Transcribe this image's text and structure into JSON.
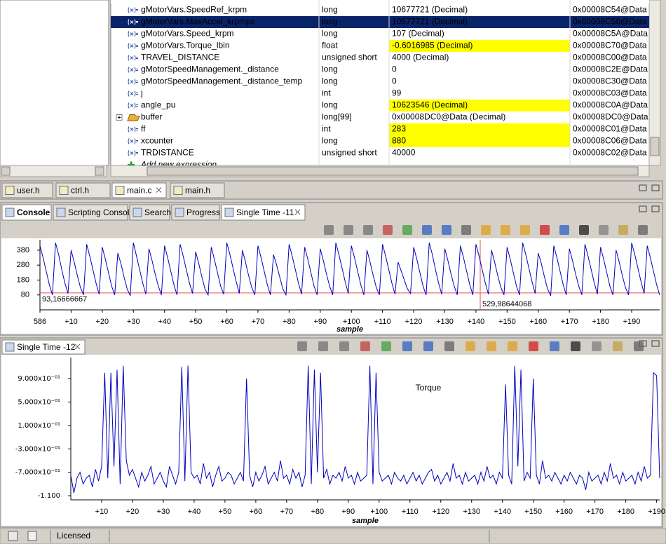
{
  "expressions": {
    "rows": [
      {
        "name": "gMotorVars.SpeedRef_krpm",
        "type": "long",
        "value": "10677721 (Decimal)",
        "address": "0x00008C54@Data"
      },
      {
        "name": "gMotorVars.MaxAccel_krpmps",
        "type": "long",
        "value": "10677721 (Decimal)",
        "address": "0x00008C58@Data",
        "selected": true
      },
      {
        "name": "gMotorVars.Speed_krpm",
        "type": "long",
        "value": "107 (Decimal)",
        "address": "0x00008C5A@Data"
      },
      {
        "name": "gMotorVars.Torque_lbin",
        "type": "float",
        "value": "-0.6016985 (Decimal)",
        "address": "0x00008C70@Data",
        "highlight": true
      },
      {
        "name": "TRAVEL_DISTANCE",
        "type": "unsigned short",
        "value": "4000 (Decimal)",
        "address": "0x00008C00@Data"
      },
      {
        "name": "gMotorSpeedManagement._distance",
        "type": "long",
        "value": "0",
        "address": "0x00008C2E@Data"
      },
      {
        "name": "gMotorSpeedManagement._distance_temp",
        "type": "long",
        "value": "0",
        "address": "0x00008C30@Data"
      },
      {
        "name": "j",
        "type": "int",
        "value": "99",
        "address": "0x00008C03@Data"
      },
      {
        "name": "angle_pu",
        "type": "long",
        "value": "10623546 (Decimal)",
        "address": "0x00008C0A@Data",
        "highlight": true
      },
      {
        "name": "buffer",
        "type": "long[99]",
        "value": "0x00008DC0@Data (Decimal)",
        "address": "0x00008DC0@Data",
        "expandable": true
      },
      {
        "name": "ff",
        "type": "int",
        "value": "283",
        "address": "0x00008C01@Data",
        "highlight": true
      },
      {
        "name": "xcounter",
        "type": "long",
        "value": "880",
        "address": "0x00008C06@Data",
        "highlight": true
      },
      {
        "name": "TRDISTANCE",
        "type": "unsigned short",
        "value": "40000",
        "address": "0x00008C02@Data"
      }
    ],
    "add_new": "Add new expression"
  },
  "editor_tabs": [
    "user.h",
    "ctrl.h",
    "main.c",
    "main.h"
  ],
  "console_tabs": [
    "Console",
    "Scripting Console",
    "Search",
    "Progress",
    "Single Time -11"
  ],
  "plots": [
    {
      "type": "line",
      "color": "#0000c0",
      "xlabel": "sample",
      "xlim": [
        0,
        199
      ],
      "ylim": [
        -20,
        450
      ],
      "xticks": [
        {
          "value": 0,
          "label": "586"
        },
        {
          "value": 10,
          "label": "+10"
        },
        {
          "value": 20,
          "label": "+20"
        },
        {
          "value": 30,
          "label": "+30"
        },
        {
          "value": 40,
          "label": "+40"
        },
        {
          "value": 50,
          "label": "+50"
        },
        {
          "value": 60,
          "label": "+60"
        },
        {
          "value": 70,
          "label": "+70"
        },
        {
          "value": 80,
          "label": "+80"
        },
        {
          "value": 90,
          "label": "+90"
        },
        {
          "value": 100,
          "label": "+100"
        },
        {
          "value": 110,
          "label": "+110"
        },
        {
          "value": 120,
          "label": "+120"
        },
        {
          "value": 130,
          "label": "+130"
        },
        {
          "value": 140,
          "label": "+140"
        },
        {
          "value": 150,
          "label": "+150"
        },
        {
          "value": 160,
          "label": "+160"
        },
        {
          "value": 170,
          "label": "+170"
        },
        {
          "value": 180,
          "label": "+180"
        },
        {
          "value": 190,
          "label": "+190"
        }
      ],
      "yticks": [
        380,
        280,
        180,
        80
      ],
      "cursors": [
        {
          "value": 93.16666667,
          "label": "93,16666667",
          "axis": "y"
        },
        {
          "value": 529.98644068,
          "label": "529,98644068",
          "axis": "x"
        }
      ],
      "values": [
        410,
        330,
        240,
        150,
        80,
        430,
        350,
        250,
        160,
        90,
        380,
        300,
        210,
        130,
        80,
        420,
        340,
        250,
        160,
        85,
        400,
        320,
        230,
        140,
        80,
        360,
        290,
        200,
        120,
        75,
        430,
        340,
        250,
        160,
        85,
        390,
        310,
        220,
        140,
        80,
        410,
        330,
        240,
        150,
        80,
        420,
        340,
        250,
        160,
        90,
        370,
        290,
        200,
        120,
        80,
        400,
        320,
        230,
        140,
        85,
        430,
        350,
        260,
        170,
        90,
        380,
        300,
        210,
        130,
        80,
        410,
        330,
        240,
        150,
        80,
        350,
        280,
        200,
        120,
        80,
        420,
        340,
        250,
        160,
        85,
        400,
        320,
        230,
        140,
        80,
        390,
        310,
        220,
        140,
        80,
        430,
        350,
        260,
        170,
        90,
        410,
        330,
        240,
        150,
        80,
        380,
        300,
        210,
        130,
        80,
        420,
        340,
        250,
        160,
        85,
        300,
        240,
        180,
        120,
        90,
        400,
        320,
        230,
        140,
        80,
        430,
        350,
        250,
        160,
        85,
        390,
        310,
        220,
        140,
        80,
        410,
        330,
        240,
        150,
        80,
        420,
        340,
        250,
        160,
        85,
        380,
        300,
        210,
        130,
        80,
        400,
        320,
        230,
        140,
        80,
        430,
        350,
        260,
        170,
        90,
        360,
        290,
        200,
        120,
        75,
        410,
        330,
        240,
        150,
        80,
        390,
        310,
        220,
        140,
        80,
        420,
        340,
        250,
        160,
        85,
        400,
        320,
        230,
        140,
        80,
        380,
        300,
        210,
        130,
        80,
        430,
        350,
        260,
        170,
        90,
        410,
        330,
        240,
        150,
        80
      ]
    },
    {
      "type": "line",
      "tab": "Single Time -12",
      "color": "#0000c0",
      "xlabel": "sample",
      "annotation": "Torque",
      "xlim": [
        0,
        191
      ],
      "ylim": [
        -1.17,
        1.26
      ],
      "xticks": [
        {
          "value": 10,
          "label": "+10"
        },
        {
          "value": 20,
          "label": "+20"
        },
        {
          "value": 30,
          "label": "+30"
        },
        {
          "value": 40,
          "label": "+40"
        },
        {
          "value": 50,
          "label": "+50"
        },
        {
          "value": 60,
          "label": "+60"
        },
        {
          "value": 70,
          "label": "+70"
        },
        {
          "value": 80,
          "label": "+80"
        },
        {
          "value": 90,
          "label": "+90"
        },
        {
          "value": 100,
          "label": "+100"
        },
        {
          "value": 110,
          "label": "+110"
        },
        {
          "value": 120,
          "label": "+120"
        },
        {
          "value": 130,
          "label": "+130"
        },
        {
          "value": 140,
          "label": "+140"
        },
        {
          "value": 150,
          "label": "+150"
        },
        {
          "value": 160,
          "label": "+160"
        },
        {
          "value": 170,
          "label": "+170"
        },
        {
          "value": 180,
          "label": "+180"
        },
        {
          "value": 190,
          "label": "+190"
        }
      ],
      "yticks": [
        {
          "value": 0.9,
          "label": "9.000x10⁻⁰¹"
        },
        {
          "value": 0.5,
          "label": "5.000x10⁻⁰¹"
        },
        {
          "value": 0.1,
          "label": "1.000x10⁻⁰¹"
        },
        {
          "value": -0.3,
          "label": "-3.000x10⁻⁰¹"
        },
        {
          "value": -0.7,
          "label": "-7.000x10⁻⁰¹"
        },
        {
          "value": -1.1,
          "label": "-1.100"
        }
      ],
      "values": [
        -0.75,
        -1.05,
        -0.8,
        -0.7,
        -0.9,
        -0.8,
        -0.75,
        -0.95,
        -0.65,
        -0.85,
        -0.6,
        1.0,
        -0.8,
        1.0,
        -0.6,
        1.05,
        -0.9,
        1.12,
        -0.5,
        -0.75,
        -0.65,
        -0.8,
        -0.95,
        -0.7,
        -0.85,
        -0.75,
        -0.6,
        -0.9,
        -0.8,
        -0.7,
        -0.85,
        -0.95,
        -0.6,
        -0.75,
        -0.9,
        -0.7,
        1.1,
        -0.85,
        1.12,
        -0.7,
        -0.8,
        -0.75,
        -0.9,
        -0.55,
        -0.8,
        -0.7,
        -0.95,
        -0.75,
        -0.6,
        -0.85,
        -0.8,
        -0.7,
        -0.75,
        -0.9,
        -0.8,
        -0.7,
        -0.85,
        0.9,
        -0.75,
        -0.95,
        -0.7,
        -0.85,
        -0.75,
        -0.6,
        -0.9,
        -0.8,
        -0.7,
        -0.85,
        -0.5,
        -0.8,
        -0.75,
        -0.9,
        -0.65,
        -0.8,
        -0.7,
        -0.95,
        -0.75,
        1.12,
        -0.9,
        1.05,
        -0.7,
        1.0,
        -0.8,
        -0.65,
        -0.9,
        -0.75,
        -0.8,
        -0.7,
        -0.85,
        -0.6,
        -0.8,
        -0.75,
        -0.9,
        -0.7,
        -0.85,
        -0.8,
        -0.75,
        1.12,
        -0.9,
        1.0,
        -0.7,
        -0.85,
        -0.8,
        -0.75,
        -0.9,
        -0.7,
        -0.8,
        -0.85,
        -0.75,
        -0.9,
        -0.8,
        -0.7,
        -0.85,
        -0.75,
        -0.9,
        -0.8,
        -0.7,
        -0.65,
        -0.85,
        -0.75,
        -0.9,
        -0.8,
        -0.7,
        -0.85,
        -0.55,
        -0.8,
        -0.75,
        -0.9,
        -0.7,
        -0.85,
        -0.8,
        -0.75,
        -0.9,
        -0.7,
        -0.85,
        -0.6,
        -0.8,
        -0.75,
        -0.9,
        -0.7,
        -0.8,
        0.8,
        -0.75,
        -0.9,
        1.12,
        -0.6,
        1.05,
        -0.85,
        -0.7,
        -0.8,
        0.9,
        -0.75,
        -0.9,
        -0.5,
        -0.8,
        -0.75,
        -0.85,
        -0.7,
        -0.8,
        -0.9,
        -0.75,
        -0.85,
        -0.7,
        -0.8,
        -0.9,
        -0.75,
        -0.8,
        -1.0,
        -0.7,
        -0.85,
        -0.8,
        -0.75,
        -0.9,
        -0.7,
        -0.85,
        -0.55,
        -0.8,
        -0.75,
        -0.9,
        -0.7,
        -0.85,
        -0.8,
        -0.75,
        -0.9,
        -0.7,
        -0.85,
        -0.6,
        -0.8,
        -0.75,
        1.0,
        0.95,
        -0.8
      ]
    }
  ],
  "status": "Licensed"
}
